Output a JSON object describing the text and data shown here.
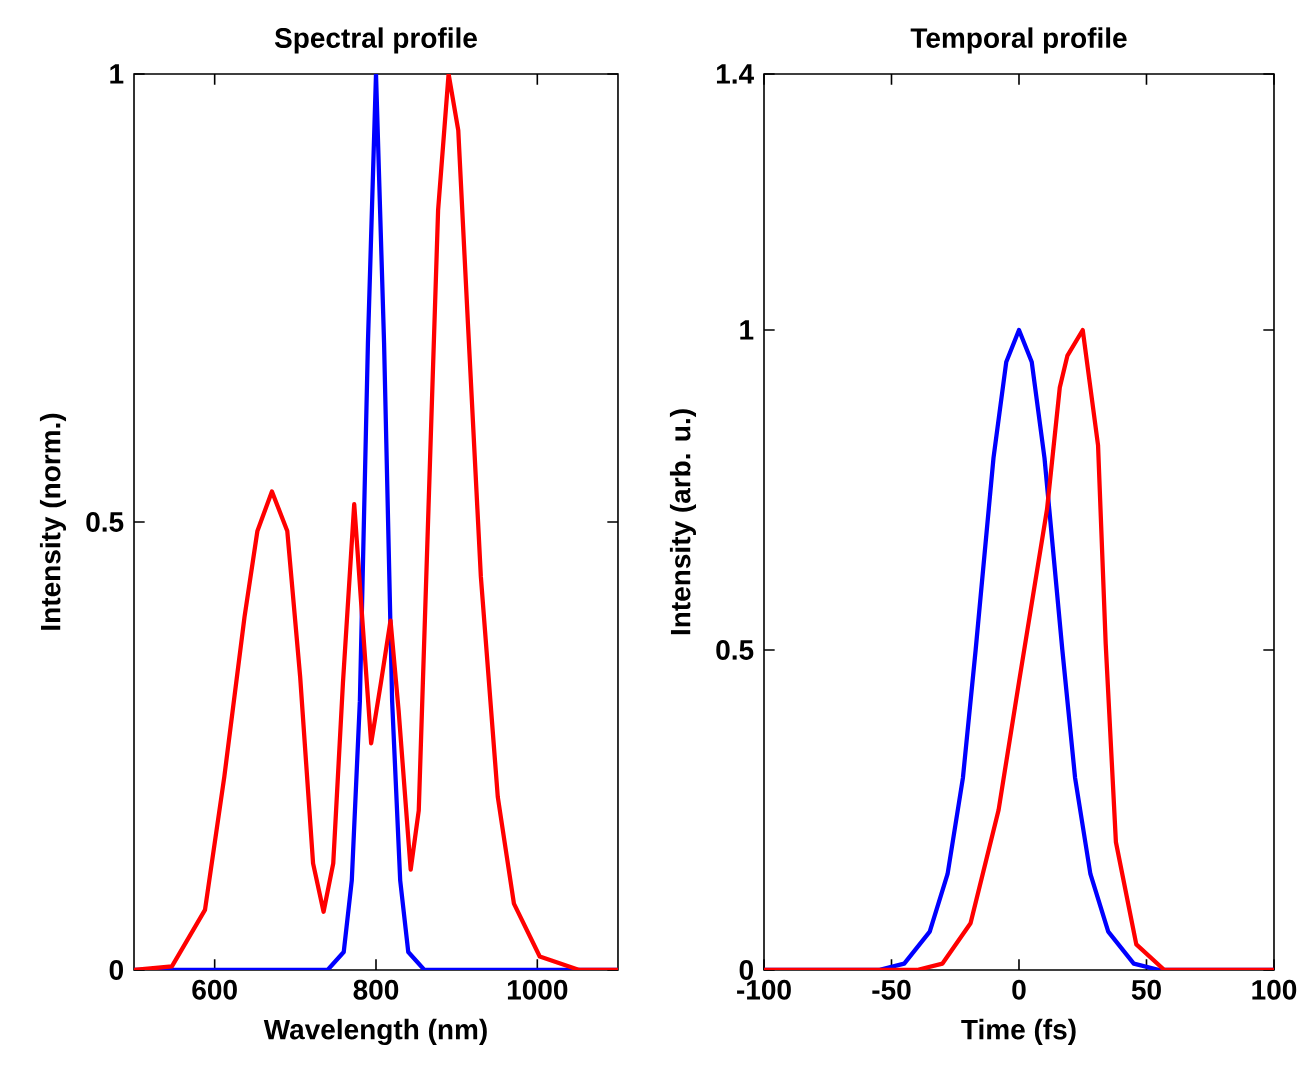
{
  "chart_data": [
    {
      "type": "line",
      "title": "Spectral profile",
      "xlabel": "Wavelength (nm)",
      "ylabel": "Intensity (norm.)",
      "xlim": [
        500,
        1100
      ],
      "ylim": [
        0,
        1
      ],
      "xticks": [
        600,
        800,
        1000
      ],
      "yticks": [
        0,
        0.5,
        1
      ],
      "series": [
        {
          "color": "#0000ff",
          "x": [
            500,
            740,
            760,
            770,
            780,
            790,
            800,
            810,
            820,
            830,
            840,
            860,
            1100
          ],
          "values": [
            0,
            0,
            0.02,
            0.1,
            0.3,
            0.7,
            1,
            0.7,
            0.3,
            0.1,
            0.02,
            0,
            0
          ]
        },
        {
          "color": "#ff0000",
          "x": [
            500,
            547,
            588,
            612,
            637,
            653,
            671,
            690,
            706,
            722,
            735,
            747,
            759,
            773,
            784,
            794,
            806,
            818,
            828,
            843,
            853,
            865,
            877,
            890,
            902,
            914,
            930,
            951,
            971,
            1003,
            1052,
            1100
          ],
          "values": [
            0,
            0.004,
            0.067,
            0.216,
            0.394,
            0.49,
            0.534,
            0.49,
            0.327,
            0.119,
            0.065,
            0.119,
            0.32,
            0.52,
            0.379,
            0.253,
            0.32,
            0.39,
            0.29,
            0.112,
            0.178,
            0.513,
            0.848,
            1,
            0.937,
            0.721,
            0.439,
            0.193,
            0.074,
            0.015,
            0,
            0
          ]
        }
      ]
    },
    {
      "type": "line",
      "title": "Temporal profile",
      "xlabel": "Time (fs)",
      "ylabel": "Intensity (arb. u.)",
      "xlim": [
        -100,
        100
      ],
      "ylim": [
        0,
        1.4
      ],
      "xticks": [
        -100,
        -50,
        0,
        50,
        100
      ],
      "yticks": [
        0,
        0.5,
        1,
        1.4
      ],
      "series": [
        {
          "color": "#0000ff",
          "x": [
            -100,
            -55,
            -45,
            -35,
            -28,
            -22,
            -17,
            -10,
            -5,
            0,
            5,
            10,
            17,
            22,
            28,
            35,
            45,
            55,
            100
          ],
          "values": [
            0,
            0,
            0.01,
            0.06,
            0.15,
            0.3,
            0.5,
            0.8,
            0.95,
            1,
            0.95,
            0.8,
            0.5,
            0.3,
            0.15,
            0.06,
            0.01,
            0,
            0
          ]
        },
        {
          "color": "#ff0000",
          "x": [
            -100,
            -40,
            -30,
            -19,
            -8,
            0,
            11,
            16,
            19,
            25,
            31,
            34,
            38,
            46,
            57,
            100
          ],
          "values": [
            0,
            0,
            0.01,
            0.073,
            0.25,
            0.45,
            0.72,
            0.91,
            0.96,
            1,
            0.82,
            0.51,
            0.2,
            0.04,
            0,
            0
          ]
        }
      ]
    }
  ]
}
